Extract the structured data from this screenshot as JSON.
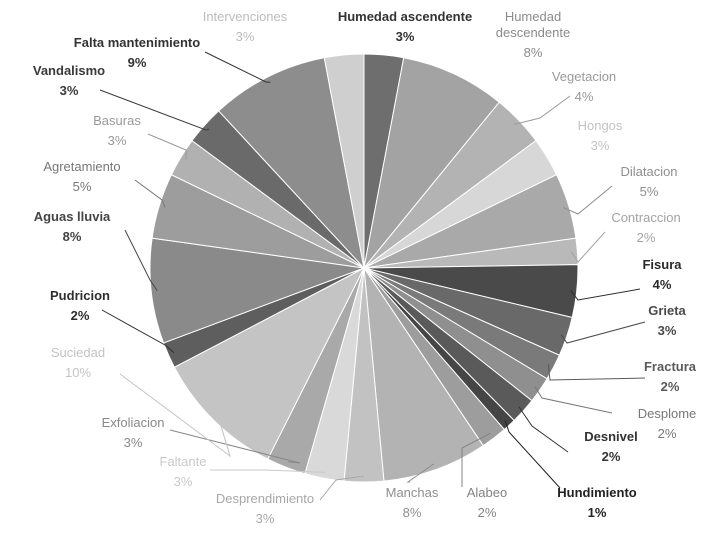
{
  "chart_data": {
    "type": "pie",
    "title": "",
    "slices": [
      {
        "label": "Humedad ascendente",
        "value": 3,
        "pct": "3%",
        "color": "#6e6e6e",
        "text_color": "#333333",
        "bold": true
      },
      {
        "label": "Humedad descendente",
        "value": 8,
        "pct": "8%",
        "color": "#a3a3a3",
        "text_color": "#8a8a8a",
        "bold": false
      },
      {
        "label": "Vegetacion",
        "value": 4,
        "pct": "4%",
        "color": "#b3b3b3",
        "text_color": "#9a9a9a",
        "bold": false
      },
      {
        "label": "Hongos",
        "value": 3,
        "pct": "3%",
        "color": "#d7d7d7",
        "text_color": "#c3c3c3",
        "bold": false
      },
      {
        "label": "Dilatacion",
        "value": 5,
        "pct": "5%",
        "color": "#a9a9a9",
        "text_color": "#8e8e8e",
        "bold": false
      },
      {
        "label": "Contraccion",
        "value": 2,
        "pct": "2%",
        "color": "#b9b9b9",
        "text_color": "#a3a3a3",
        "bold": false
      },
      {
        "label": "Fisura",
        "value": 4,
        "pct": "4%",
        "color": "#4a4a4a",
        "text_color": "#2a2a2a",
        "bold": true
      },
      {
        "label": "Grieta",
        "value": 3,
        "pct": "3%",
        "color": "#696969",
        "text_color": "#4a4a4a",
        "bold": true
      },
      {
        "label": "Fractura",
        "value": 2,
        "pct": "2%",
        "color": "#7a7a7a",
        "text_color": "#5a5a5a",
        "bold": true
      },
      {
        "label": "Desplome",
        "value": 2,
        "pct": "2%",
        "color": "#8f8f8f",
        "text_color": "#777777",
        "bold": false
      },
      {
        "label": "Desnivel",
        "value": 2,
        "pct": "2%",
        "color": "#5a5a5a",
        "text_color": "#333333",
        "bold": true
      },
      {
        "label": "Hundimiento",
        "value": 1,
        "pct": "1%",
        "color": "#454545",
        "text_color": "#222222",
        "bold": true
      },
      {
        "label": "Alabeo",
        "value": 2,
        "pct": "2%",
        "color": "#9d9d9d",
        "text_color": "#838383",
        "bold": false
      },
      {
        "label": "Manchas",
        "value": 8,
        "pct": "8%",
        "color": "#b3b3b3",
        "text_color": "#8e8e8e",
        "bold": false
      },
      {
        "label": "Desprendimiento",
        "value": 3,
        "pct": "3%",
        "color": "#c2c2c2",
        "text_color": "#a8a8a8",
        "bold": false
      },
      {
        "label": "Faltante",
        "value": 3,
        "pct": "3%",
        "color": "#d9d9d9",
        "text_color": "#c9c9c9",
        "bold": false
      },
      {
        "label": "Exfoliacion",
        "value": 3,
        "pct": "3%",
        "color": "#a9a9a9",
        "text_color": "#888888",
        "bold": false
      },
      {
        "label": "Suciedad",
        "value": 10,
        "pct": "10%",
        "color": "#c4c4c4",
        "text_color": "#c3c3c3",
        "bold": false
      },
      {
        "label": "Pudricion",
        "value": 2,
        "pct": "2%",
        "color": "#5e5e5e",
        "text_color": "#2e2e2e",
        "bold": true
      },
      {
        "label": "Aguas lluvia",
        "value": 8,
        "pct": "8%",
        "color": "#8a8a8a",
        "text_color": "#444444",
        "bold": true
      },
      {
        "label": "Agretamiento",
        "value": 5,
        "pct": "5%",
        "color": "#9d9d9d",
        "text_color": "#777777",
        "bold": false
      },
      {
        "label": "Basuras",
        "value": 3,
        "pct": "3%",
        "color": "#b1b1b1",
        "text_color": "#999999",
        "bold": false
      },
      {
        "label": "Vandalismo",
        "value": 3,
        "pct": "3%",
        "color": "#6a6a6a",
        "text_color": "#3a3a3a",
        "bold": true
      },
      {
        "label": "Falta mantenimiento",
        "value": 9,
        "pct": "9%",
        "color": "#8d8d8d",
        "text_color": "#333333",
        "bold": true
      },
      {
        "label": "Intervenciones",
        "value": 3,
        "pct": "3%",
        "color": "#cfcfcf",
        "text_color": "#bcbcbc",
        "bold": false
      }
    ]
  }
}
